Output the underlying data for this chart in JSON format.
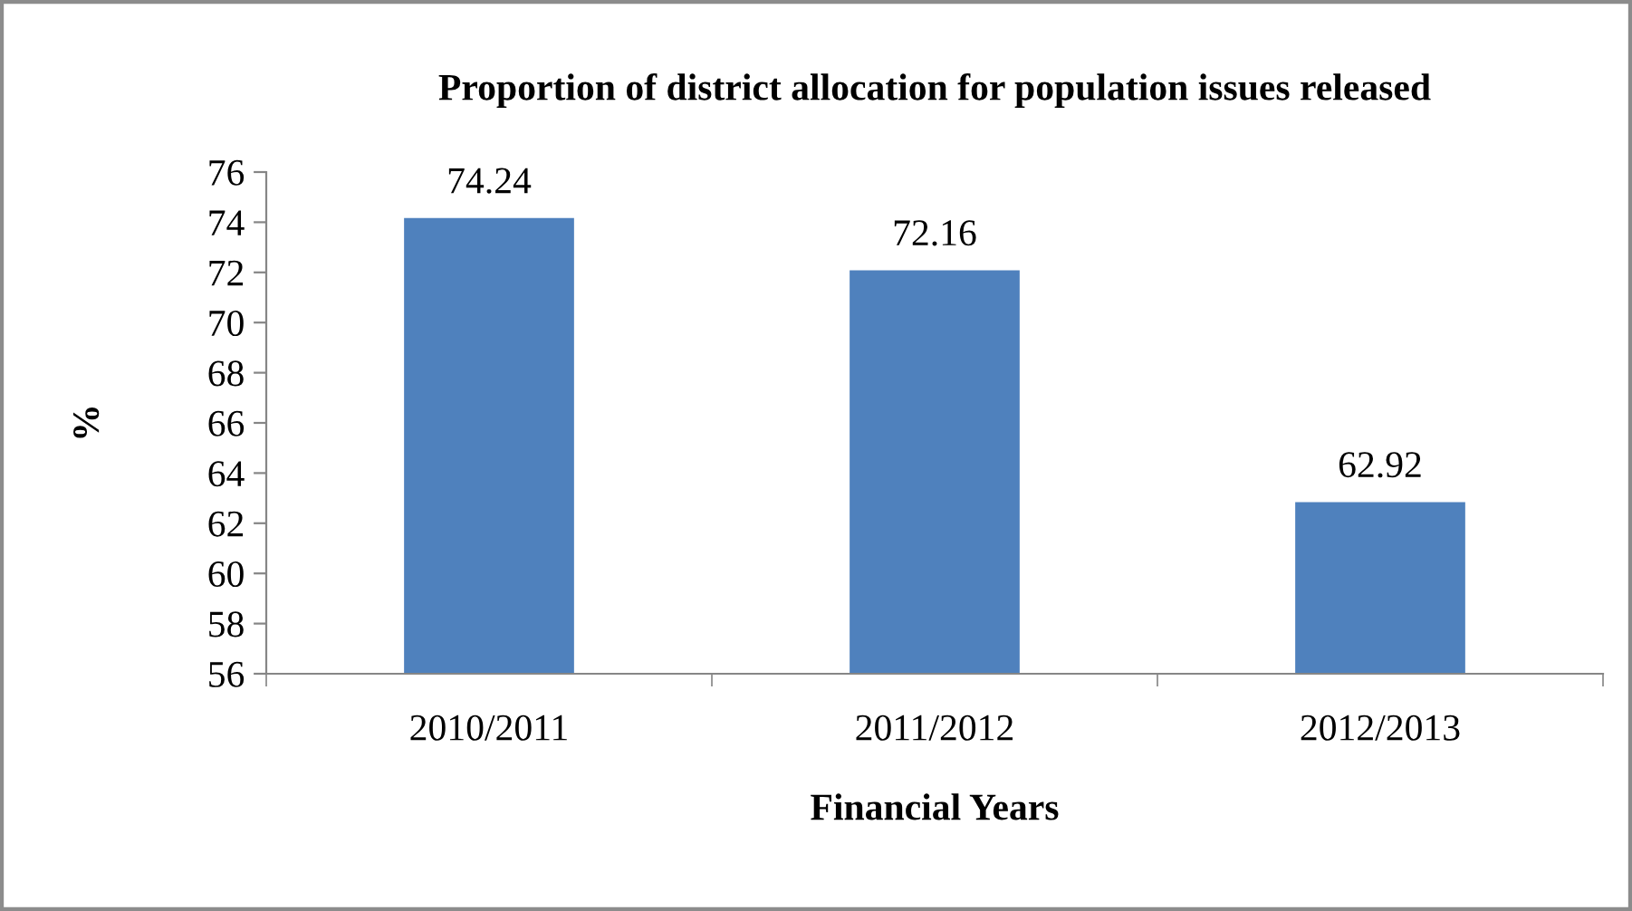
{
  "chart_data": {
    "type": "bar",
    "title": "Proportion of district allocation for population issues released",
    "xlabel": "Financial Years",
    "ylabel": "%",
    "categories": [
      "2010/2011",
      "2011/2012",
      "2012/2013"
    ],
    "values": [
      74.24,
      72.16,
      62.92
    ],
    "color": "#4f81bd",
    "ylim": [
      56,
      76
    ],
    "yticks": [
      56,
      58,
      60,
      62,
      64,
      66,
      68,
      70,
      72,
      74,
      76
    ],
    "grid": false,
    "data_labels": true,
    "legend": false
  }
}
